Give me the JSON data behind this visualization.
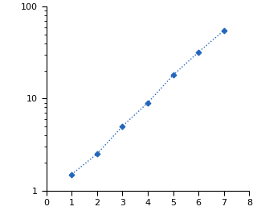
{
  "x": [
    1,
    2,
    3,
    4,
    5,
    6,
    7
  ],
  "y": [
    1.5,
    2.5,
    5.0,
    9.0,
    18.0,
    32.0,
    55.0
  ],
  "line_color": "#2266BB",
  "marker_color": "#2266BB",
  "marker_style": "D",
  "marker_size": 3.5,
  "line_style": ":",
  "line_width": 1.0,
  "xlim": [
    0,
    8
  ],
  "ylim": [
    1,
    100
  ],
  "xticks": [
    0,
    1,
    2,
    3,
    4,
    5,
    6,
    7,
    8
  ],
  "yticks_major": [
    1,
    10,
    100
  ],
  "ytick_labels": [
    "1",
    "10",
    "100"
  ],
  "background_color": "#ffffff",
  "plot_bg_color": "#ffffff",
  "tick_fontsize": 8,
  "spine_color": "#000000"
}
